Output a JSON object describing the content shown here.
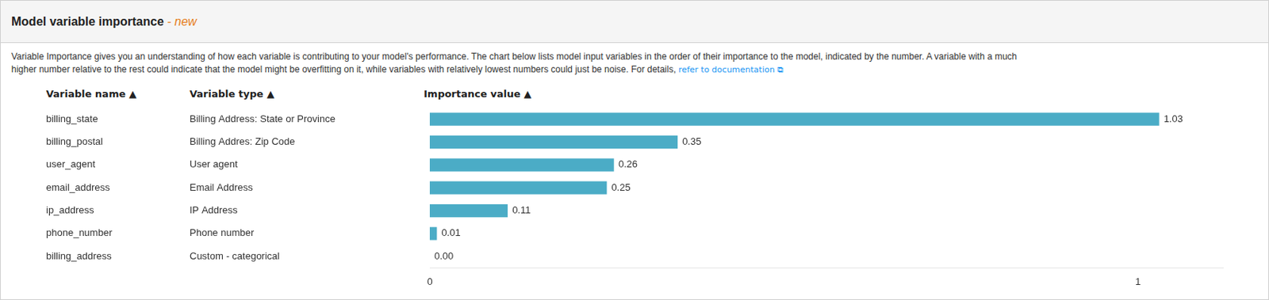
{
  "chart_data": {
    "type": "bar",
    "orientation": "horizontal",
    "title": "Model variable importance",
    "subtitle": " - new",
    "annotations": [
      "Variable Importance gives you an understanding of how each variable is contributing to your model's performance. The chart below lists model input variables in the order of their importance to the model, indicated by the number. A variable with a much",
      "higher number relative to the rest could indicate that the model might be overfitting on it, while variables with relatively lowest numbers could just be noise. For details, ",
      "refer to documentation ⧉"
    ],
    "column_headers": [
      "Variable name ▲",
      "Variable type ▲",
      "Importance value ▲"
    ],
    "categories": [
      "billing_state",
      "billing_postal",
      "user_agent",
      "email_address",
      "ip_address",
      "phone_number",
      "billing_address"
    ],
    "category_types": [
      "Billing Address: State or Province",
      "Billing Addres: Zip Code",
      "User agent",
      "Email Address",
      "IP Address",
      "Phone number",
      "Custom - categorical"
    ],
    "values": [
      1.03,
      0.35,
      0.26,
      0.25,
      0.11,
      0.01,
      0.0
    ],
    "value_labels": [
      "1.03",
      "0.35",
      "0.26",
      "0.25",
      "0.11",
      "0.01",
      "0.00"
    ],
    "data_labels": true,
    "color": "#4BACC6",
    "xlim": [
      0,
      1.12
    ],
    "xticks": [
      0,
      1
    ],
    "grid": false
  }
}
